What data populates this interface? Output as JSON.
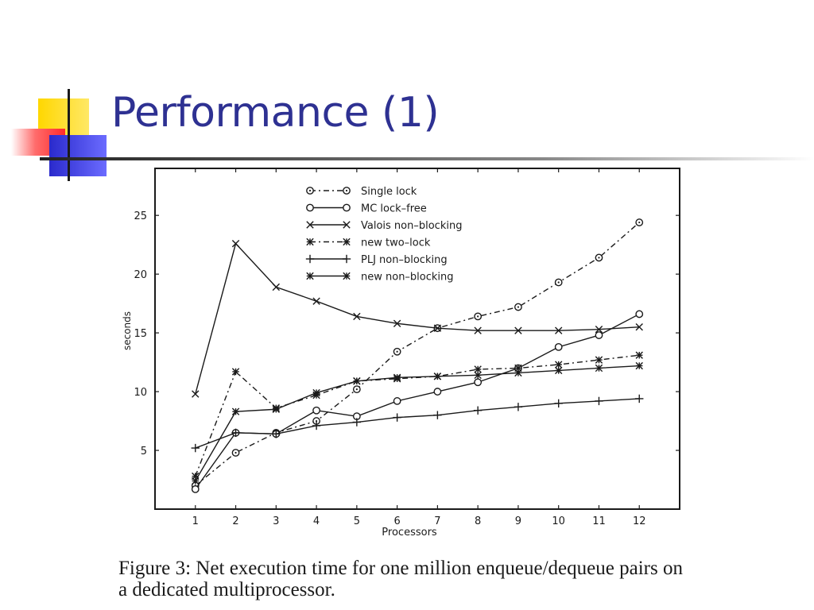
{
  "slide": {
    "title": "Performance (1)",
    "caption": "Figure 3:  Net execution time for one million enqueue/dequeue pairs on a dedicated multiprocessor."
  },
  "colors": {
    "title": "#2e3192",
    "deco_yellow": "#ffd700",
    "deco_red": "#ff3b3b",
    "deco_blue": "#3333cc",
    "chart_ink": "#1a1a1a"
  },
  "chart_data": {
    "type": "line",
    "xlabel": "Processors",
    "ylabel": "seconds",
    "x": [
      1,
      2,
      3,
      4,
      5,
      6,
      7,
      8,
      9,
      10,
      11,
      12
    ],
    "xlim": [
      0,
      13
    ],
    "ylim": [
      0,
      29
    ],
    "yticks": [
      5,
      10,
      15,
      20,
      25
    ],
    "grid": false,
    "legend_position": "top-center",
    "series": [
      {
        "name": "Single lock",
        "line": "dash-dot",
        "marker": "circle-dot",
        "values": [
          2.0,
          4.8,
          6.5,
          7.5,
          10.2,
          13.4,
          15.4,
          16.4,
          17.2,
          19.3,
          21.4,
          24.4
        ]
      },
      {
        "name": "MC lock–free",
        "line": "solid",
        "marker": "circle",
        "values": [
          1.7,
          6.5,
          6.4,
          8.4,
          7.9,
          9.2,
          10.0,
          10.8,
          12.0,
          13.8,
          14.8,
          16.6
        ]
      },
      {
        "name": "Valois non–blocking",
        "line": "solid",
        "marker": "x",
        "values": [
          9.8,
          22.6,
          18.9,
          17.7,
          16.4,
          15.8,
          15.4,
          15.2,
          15.2,
          15.2,
          15.3,
          15.5
        ]
      },
      {
        "name": "new two–lock",
        "line": "dash-dot",
        "marker": "star",
        "values": [
          2.8,
          11.7,
          8.6,
          9.7,
          10.9,
          11.1,
          11.3,
          11.9,
          12.0,
          12.3,
          12.7,
          13.1
        ]
      },
      {
        "name": "PLJ non–blocking",
        "line": "solid",
        "marker": "plus",
        "values": [
          5.2,
          6.5,
          6.4,
          7.1,
          7.4,
          7.8,
          8.0,
          8.4,
          8.7,
          9.0,
          9.2,
          9.4
        ]
      },
      {
        "name": "new non–blocking",
        "line": "solid",
        "marker": "star",
        "values": [
          2.4,
          8.3,
          8.5,
          9.9,
          10.9,
          11.2,
          11.3,
          11.4,
          11.6,
          11.8,
          12.0,
          12.2
        ]
      }
    ]
  }
}
